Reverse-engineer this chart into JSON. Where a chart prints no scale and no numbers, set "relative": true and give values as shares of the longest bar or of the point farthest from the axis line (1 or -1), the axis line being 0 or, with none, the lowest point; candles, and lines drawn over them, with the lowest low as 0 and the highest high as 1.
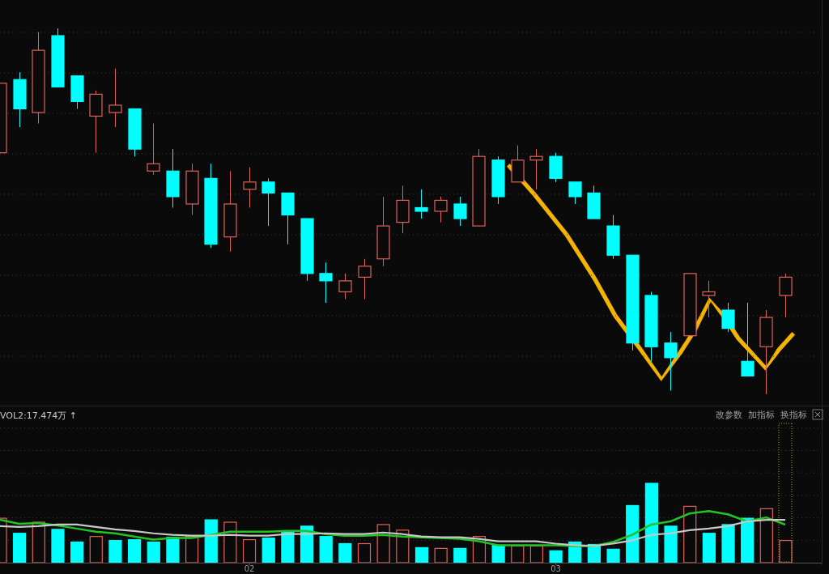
{
  "chart_data": [
    {
      "type": "candlestick",
      "relative": true,
      "grid": true,
      "tick_labels": false,
      "categories": [
        null,
        null,
        null,
        null,
        null,
        null,
        null,
        null,
        null,
        null,
        null,
        null,
        null,
        "02",
        null,
        null,
        null,
        null,
        null,
        null,
        null,
        null,
        null,
        null,
        null,
        null,
        null,
        null,
        null,
        "03",
        null,
        null,
        null,
        null,
        null,
        null,
        null,
        null,
        null,
        null,
        null,
        null
      ],
      "ohlc": [
        [
          0.66,
          0.85,
          0.66,
          0.85
        ],
        [
          0.86,
          0.88,
          0.73,
          0.78
        ],
        [
          0.77,
          0.99,
          0.74,
          0.94
        ],
        [
          0.98,
          1,
          0.84,
          0.84
        ],
        [
          0.87,
          0.87,
          0.78,
          0.8
        ],
        [
          0.76,
          0.83,
          0.66,
          0.82
        ],
        [
          0.77,
          0.89,
          0.73,
          0.79
        ],
        [
          0.78,
          0.78,
          0.65,
          0.67
        ],
        [
          0.61,
          0.74,
          0.6,
          0.63
        ],
        [
          0.61,
          0.67,
          0.51,
          0.54
        ],
        [
          0.52,
          0.63,
          0.49,
          0.61
        ],
        [
          0.59,
          0.63,
          0.4,
          0.41
        ],
        [
          0.43,
          0.61,
          0.39,
          0.52
        ],
        [
          0.56,
          0.62,
          0.51,
          0.58
        ],
        [
          0.58,
          0.59,
          0.46,
          0.55
        ],
        [
          0.55,
          0.55,
          0.41,
          0.49
        ],
        [
          0.48,
          0.48,
          0.31,
          0.33
        ],
        [
          0.33,
          0.36,
          0.25,
          0.31
        ],
        [
          0.28,
          0.33,
          0.26,
          0.31
        ],
        [
          0.32,
          0.37,
          0.26,
          0.35
        ],
        [
          0.37,
          0.54,
          0.35,
          0.46
        ],
        [
          0.47,
          0.57,
          0.44,
          0.53
        ],
        [
          0.51,
          0.56,
          0.48,
          0.5
        ],
        [
          0.5,
          0.54,
          0.47,
          0.53
        ],
        [
          0.52,
          0.54,
          0.46,
          0.48
        ],
        [
          0.46,
          0.67,
          0.46,
          0.65
        ],
        [
          0.64,
          0.65,
          0.52,
          0.54
        ],
        [
          0.58,
          0.68,
          0.58,
          0.64
        ],
        [
          0.64,
          0.67,
          0.56,
          0.65
        ],
        [
          0.65,
          0.66,
          0.58,
          0.59
        ],
        [
          0.58,
          0.58,
          0.52,
          0.54
        ],
        [
          0.55,
          0.57,
          0.48,
          0.48
        ],
        [
          0.46,
          0.49,
          0.37,
          0.38
        ],
        [
          0.38,
          0.38,
          0.12,
          0.14
        ],
        [
          0.27,
          0.28,
          0.09,
          0.13
        ],
        [
          0.14,
          0.17,
          0.01,
          0.1
        ],
        [
          0.16,
          0.33,
          0.16,
          0.33
        ],
        [
          0.27,
          0.31,
          0.21,
          0.28
        ],
        [
          0.23,
          0.25,
          0.17,
          0.18
        ],
        [
          0.09,
          0.25,
          0.05,
          0.05
        ],
        [
          0.13,
          0.23,
          0,
          0.21
        ],
        [
          0.27,
          0.33,
          0.21,
          0.32
        ]
      ],
      "colors": [
        "#e0625a",
        "#00ffff",
        "#e0625a",
        "#00ffff",
        "#00ffff",
        "#e0625a",
        "#e0625a",
        "#00ffff",
        "#e0625a",
        "#00ffff",
        "#e0625a",
        "#00ffff",
        "#e0625a",
        "#e0625a",
        "#00ffff",
        "#00ffff",
        "#00ffff",
        "#00ffff",
        "#e0625a",
        "#e0625a",
        "#e0625a",
        "#e0625a",
        "#00ffff",
        "#e0625a",
        "#00ffff",
        "#e0625a",
        "#00ffff",
        "#e0625a",
        "#e0625a",
        "#00ffff",
        "#00ffff",
        "#00ffff",
        "#00ffff",
        "#00ffff",
        "#00ffff",
        "#00ffff",
        "#e0625a",
        "#e0625a",
        "#00ffff",
        "#00ffff",
        "#e0625a",
        "#e0625a"
      ]
    },
    {
      "type": "bar",
      "relative": true,
      "grid": true,
      "tick_labels": "x",
      "categories": [
        null,
        null,
        null,
        null,
        null,
        null,
        null,
        null,
        null,
        null,
        null,
        null,
        null,
        "02",
        null,
        null,
        null,
        null,
        null,
        null,
        null,
        null,
        null,
        null,
        null,
        null,
        null,
        null,
        null,
        "03",
        null,
        null,
        null,
        null,
        null,
        null,
        null,
        null,
        null,
        null,
        null,
        null
      ],
      "annotations": [
        "VOL2:17.474万 ↑",
        "改参数",
        "加指标",
        "换指标"
      ],
      "series": [
        {
          "type": "bar",
          "values": [
            0.56,
            0.37,
            0.51,
            0.42,
            0.26,
            0.33,
            0.28,
            0.29,
            0.26,
            0.32,
            0.33,
            0.54,
            0.51,
            0.29,
            0.31,
            0.39,
            0.46,
            0.33,
            0.24,
            0.24,
            0.48,
            0.41,
            0.19,
            0.18,
            0.18,
            0.33,
            0.22,
            0.21,
            0.21,
            0.15,
            0.26,
            0.23,
            0.17,
            0.72,
            1,
            0.46,
            0.71,
            0.37,
            0.48,
            0.56,
            0.68,
            0.28
          ],
          "colors": [
            "#e0625a",
            "#00ffff",
            "#e0625a",
            "#00ffff",
            "#00ffff",
            "#e0625a",
            "#00ffff",
            "#00ffff",
            "#00ffff",
            "#00ffff",
            "#e0625a",
            "#00ffff",
            "#e0625a",
            "#e0625a",
            "#00ffff",
            "#00ffff",
            "#00ffff",
            "#00ffff",
            "#00ffff",
            "#e0625a",
            "#e0625a",
            "#e0625a",
            "#00ffff",
            "#e0625a",
            "#00ffff",
            "#e0625a",
            "#00ffff",
            "#e0625a",
            "#e0625a",
            "#00ffff",
            "#00ffff",
            "#00ffff",
            "#00ffff",
            "#00ffff",
            "#00ffff",
            "#00ffff",
            "#e0625a",
            "#00ffff",
            "#00ffff",
            "#00ffff",
            "#e0625a",
            "#e0625a"
          ]
        },
        {
          "type": "line",
          "color": "#22c322",
          "values": [
            0.54,
            0.49,
            0.5,
            0.47,
            0.43,
            0.39,
            0.37,
            0.33,
            0.29,
            0.31,
            0.31,
            0.35,
            0.39,
            0.39,
            0.39,
            0.4,
            0.4,
            0.36,
            0.34,
            0.34,
            0.35,
            0.33,
            0.32,
            0.31,
            0.3,
            0.27,
            0.22,
            0.22,
            0.22,
            0.22,
            0.21,
            0.21,
            0.26,
            0.35,
            0.48,
            0.52,
            0.62,
            0.65,
            0.61,
            0.52,
            0.57,
            0.48
          ]
        },
        {
          "type": "line",
          "color": "#c8c8c8",
          "values": [
            0.46,
            0.45,
            0.46,
            0.48,
            0.48,
            0.45,
            0.42,
            0.4,
            0.37,
            0.35,
            0.34,
            0.34,
            0.35,
            0.34,
            0.34,
            0.36,
            0.36,
            0.37,
            0.36,
            0.36,
            0.38,
            0.36,
            0.33,
            0.32,
            0.32,
            0.3,
            0.27,
            0.27,
            0.27,
            0.24,
            0.22,
            0.21,
            0.24,
            0.28,
            0.35,
            0.37,
            0.41,
            0.43,
            0.46,
            0.52,
            0.54,
            0.54
          ]
        }
      ]
    }
  ]
}
